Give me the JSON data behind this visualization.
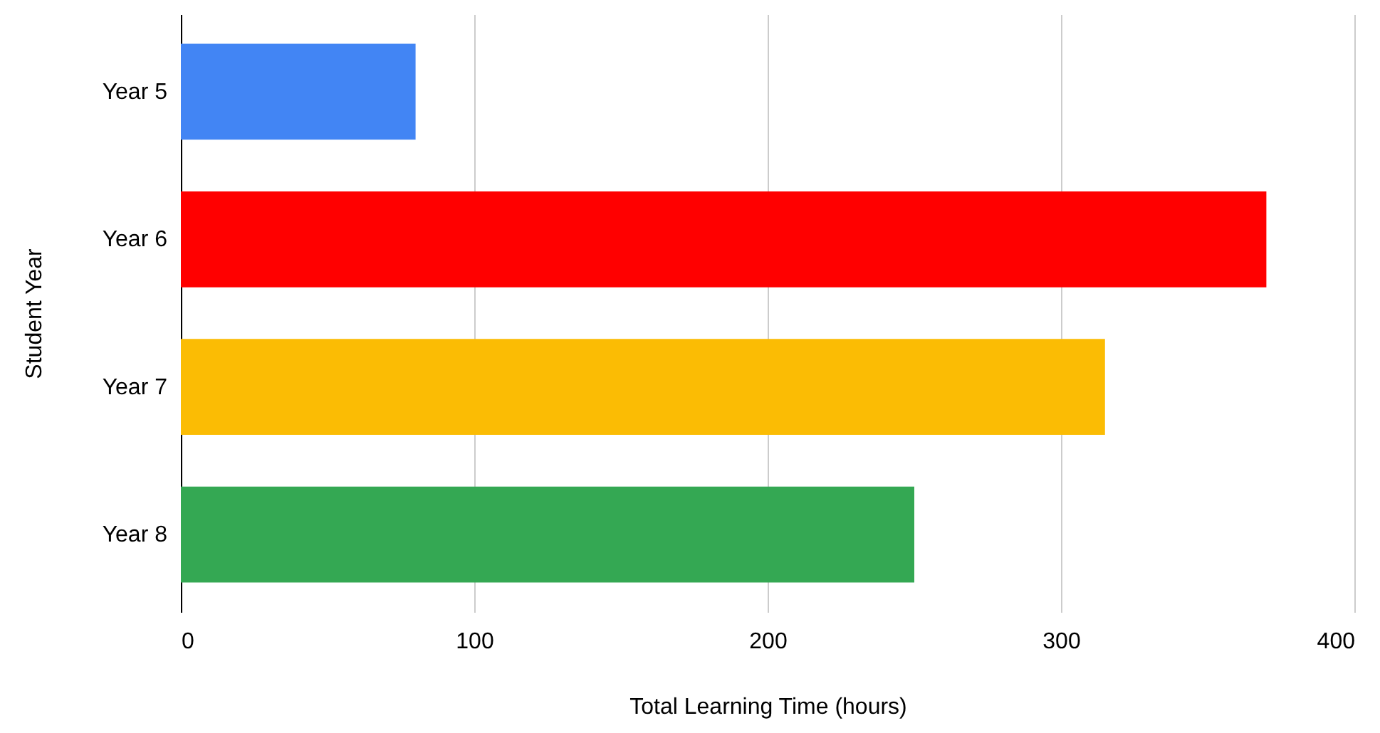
{
  "chart_data": {
    "type": "bar",
    "orientation": "horizontal",
    "xlabel": "Total Learning Time (hours)",
    "ylabel": "Student Year",
    "categories": [
      "Year 5",
      "Year 6",
      "Year 7",
      "Year 8"
    ],
    "values": [
      80,
      370,
      315,
      250
    ],
    "colors": [
      "#4285f4",
      "#ff0000",
      "#fbbc04",
      "#34a853"
    ],
    "xlim": [
      0,
      400
    ],
    "xticks": [
      0,
      100,
      200,
      300,
      400
    ],
    "grid": "x"
  }
}
